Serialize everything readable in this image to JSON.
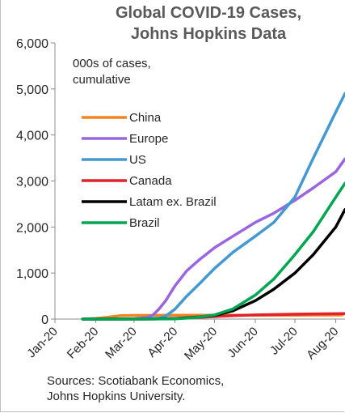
{
  "chart_data": {
    "type": "line",
    "title": [
      "Global COVID-19 Cases,",
      "Johns Hopkins Data"
    ],
    "annotation": [
      "000s of cases,",
      "cumulative"
    ],
    "sources": [
      "Sources: Scotiabank Economics,",
      "Johns Hopkins University."
    ],
    "xlabel": "",
    "ylabel": "",
    "ylim": [
      0,
      6000
    ],
    "y_ticks": [
      0,
      1000,
      2000,
      3000,
      4000,
      5000,
      6000
    ],
    "y_tick_labels": [
      "0",
      "1,000",
      "2,000",
      "3,000",
      "4,000",
      "5,000",
      "6,000"
    ],
    "x_range": [
      "2020-01-01",
      "2020-08-08"
    ],
    "x_ticks": [
      "2020-01-01",
      "2020-02-01",
      "2020-03-01",
      "2020-04-01",
      "2020-05-01",
      "2020-06-01",
      "2020-07-01",
      "2020-08-01"
    ],
    "x_tick_labels": [
      "Jan-20",
      "Feb-20",
      "Mar-20",
      "Apr-20",
      "May-20",
      "Jun-20",
      "Jul-20",
      "Aug-20"
    ],
    "grid": false,
    "legend_position": "left",
    "series": [
      {
        "name": "China",
        "color": "#f58220",
        "points": [
          [
            "2020-01-22",
            0
          ],
          [
            "2020-02-01",
            12
          ],
          [
            "2020-02-10",
            40
          ],
          [
            "2020-02-20",
            75
          ],
          [
            "2020-03-01",
            80
          ],
          [
            "2020-04-01",
            82
          ],
          [
            "2020-05-01",
            84
          ],
          [
            "2020-06-01",
            84
          ],
          [
            "2020-07-01",
            85
          ],
          [
            "2020-08-06",
            88
          ]
        ]
      },
      {
        "name": "Europe",
        "color": "#9966e0",
        "points": [
          [
            "2020-01-22",
            0
          ],
          [
            "2020-03-01",
            5
          ],
          [
            "2020-03-10",
            30
          ],
          [
            "2020-03-15",
            80
          ],
          [
            "2020-03-20",
            220
          ],
          [
            "2020-03-25",
            400
          ],
          [
            "2020-04-01",
            720
          ],
          [
            "2020-04-10",
            1050
          ],
          [
            "2020-04-20",
            1300
          ],
          [
            "2020-05-01",
            1550
          ],
          [
            "2020-05-15",
            1800
          ],
          [
            "2020-06-01",
            2100
          ],
          [
            "2020-06-15",
            2300
          ],
          [
            "2020-07-01",
            2580
          ],
          [
            "2020-07-15",
            2850
          ],
          [
            "2020-08-01",
            3200
          ],
          [
            "2020-08-08",
            3480
          ]
        ]
      },
      {
        "name": "US",
        "color": "#4499d0",
        "points": [
          [
            "2020-01-22",
            0
          ],
          [
            "2020-03-10",
            1
          ],
          [
            "2020-03-20",
            20
          ],
          [
            "2020-03-25",
            65
          ],
          [
            "2020-04-01",
            215
          ],
          [
            "2020-04-10",
            500
          ],
          [
            "2020-04-20",
            780
          ],
          [
            "2020-05-01",
            1100
          ],
          [
            "2020-05-15",
            1450
          ],
          [
            "2020-06-01",
            1800
          ],
          [
            "2020-06-15",
            2100
          ],
          [
            "2020-07-01",
            2650
          ],
          [
            "2020-07-15",
            3500
          ],
          [
            "2020-08-01",
            4500
          ],
          [
            "2020-08-08",
            4900
          ]
        ]
      },
      {
        "name": "Canada",
        "color": "#e0232a",
        "points": [
          [
            "2020-01-22",
            0
          ],
          [
            "2020-03-15",
            1
          ],
          [
            "2020-04-01",
            10
          ],
          [
            "2020-04-15",
            30
          ],
          [
            "2020-05-01",
            55
          ],
          [
            "2020-05-15",
            75
          ],
          [
            "2020-06-01",
            90
          ],
          [
            "2020-07-01",
            105
          ],
          [
            "2020-08-08",
            120
          ]
        ]
      },
      {
        "name": "Latam ex. Brazil",
        "color": "#000000",
        "points": [
          [
            "2020-01-22",
            0
          ],
          [
            "2020-03-15",
            1
          ],
          [
            "2020-04-01",
            10
          ],
          [
            "2020-04-15",
            35
          ],
          [
            "2020-05-01",
            80
          ],
          [
            "2020-05-15",
            180
          ],
          [
            "2020-06-01",
            400
          ],
          [
            "2020-06-15",
            650
          ],
          [
            "2020-07-01",
            1000
          ],
          [
            "2020-07-15",
            1400
          ],
          [
            "2020-08-01",
            2000
          ],
          [
            "2020-08-08",
            2380
          ]
        ]
      },
      {
        "name": "Brazil",
        "color": "#00a651",
        "points": [
          [
            "2020-01-22",
            0
          ],
          [
            "2020-03-20",
            1
          ],
          [
            "2020-04-01",
            6
          ],
          [
            "2020-04-15",
            28
          ],
          [
            "2020-05-01",
            90
          ],
          [
            "2020-05-15",
            220
          ],
          [
            "2020-06-01",
            520
          ],
          [
            "2020-06-15",
            870
          ],
          [
            "2020-07-01",
            1400
          ],
          [
            "2020-07-15",
            1900
          ],
          [
            "2020-08-01",
            2650
          ],
          [
            "2020-08-08",
            2950
          ]
        ]
      }
    ]
  }
}
